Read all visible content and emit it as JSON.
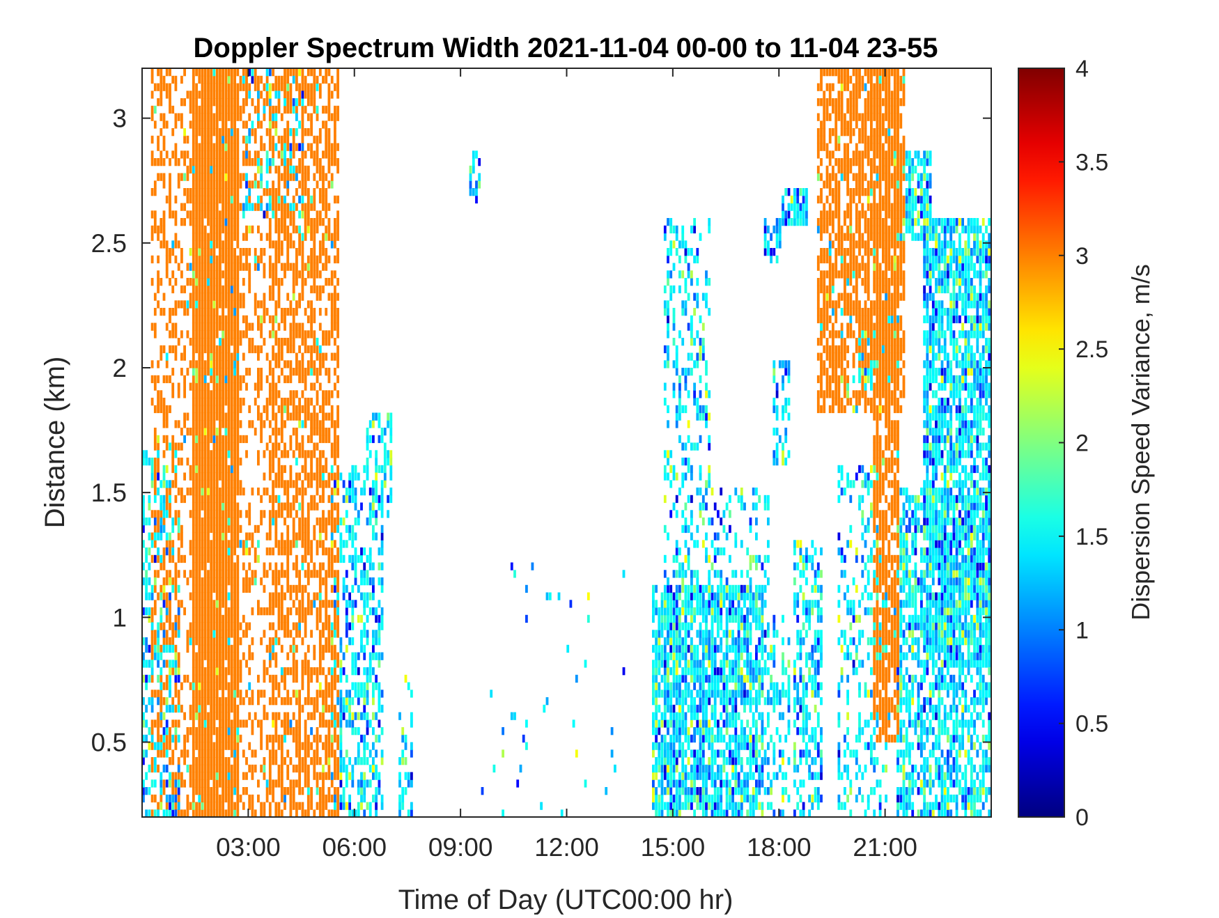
{
  "chart_data": {
    "type": "heatmap",
    "title": "Doppler Spectrum Width 2021-11-04 00-00 to 11-04 23-55",
    "xlabel": "Time of Day (UTC00:00 hr)",
    "ylabel": "Distance (km)",
    "colorbar_label": "Dispersion Speed Variance, m/s",
    "colormap": "jet",
    "colormap_stops": [
      "#00008f",
      "#0000ff",
      "#00ffff",
      "#ffff00",
      "#ff0000",
      "#800000"
    ],
    "background_color": "#ffffff",
    "xlim": [
      0,
      24
    ],
    "ylim": [
      0.2,
      3.2
    ],
    "clim": [
      0,
      4
    ],
    "x_ticks": [
      3,
      6,
      9,
      12,
      15,
      18,
      21
    ],
    "x_tick_labels": [
      "03:00",
      "06:00",
      "09:00",
      "12:00",
      "15:00",
      "18:00",
      "21:00"
    ],
    "y_ticks": [
      0.5,
      1,
      1.5,
      2,
      2.5,
      3
    ],
    "y_tick_labels": [
      "0.5",
      "1",
      "1.5",
      "2",
      "2.5",
      "3"
    ],
    "colorbar_ticks": [
      0,
      0.5,
      1,
      1.5,
      2,
      2.5,
      3,
      3.5,
      4
    ],
    "colorbar_tick_labels": [
      "0",
      "0.5",
      "1",
      "1.5",
      "2",
      "2.5",
      "3",
      "3.5",
      "4"
    ],
    "regions": [
      {
        "x": [
          1.4,
          2.7
        ],
        "y": [
          0.2,
          3.2
        ],
        "value": 3.0,
        "density": 0.93
      },
      {
        "x": [
          0.2,
          3.5
        ],
        "y": [
          0.2,
          3.2
        ],
        "value": 3.0,
        "density": 0.35
      },
      {
        "x": [
          3.5,
          5.5
        ],
        "y": [
          0.2,
          3.2
        ],
        "value": 3.0,
        "density": 0.58
      },
      {
        "x": [
          0.0,
          1.0
        ],
        "y": [
          0.2,
          1.7
        ],
        "value": 1.4,
        "density": 0.45
      },
      {
        "x": [
          2.8,
          4.5
        ],
        "y": [
          2.6,
          3.2
        ],
        "value": 1.3,
        "density": 0.35
      },
      {
        "x": [
          5.3,
          6.8
        ],
        "y": [
          0.2,
          1.6
        ],
        "value": 1.3,
        "density": 0.45
      },
      {
        "x": [
          6.3,
          7.0
        ],
        "y": [
          1.4,
          1.8
        ],
        "value": 1.4,
        "density": 0.4
      },
      {
        "x": [
          7.2,
          7.6
        ],
        "y": [
          0.2,
          0.8
        ],
        "value": 1.4,
        "density": 0.35
      },
      {
        "x": [
          9.2,
          9.5
        ],
        "y": [
          2.65,
          2.85
        ],
        "value": 1.5,
        "density": 0.6
      },
      {
        "x": [
          14.4,
          17.5
        ],
        "y": [
          0.2,
          1.1
        ],
        "value": 1.4,
        "density": 0.78
      },
      {
        "x": [
          14.7,
          16.0
        ],
        "y": [
          1.0,
          2.6
        ],
        "value": 1.4,
        "density": 0.32
      },
      {
        "x": [
          16.0,
          17.7
        ],
        "y": [
          1.0,
          1.5
        ],
        "value": 1.4,
        "density": 0.3
      },
      {
        "x": [
          17.5,
          18.3
        ],
        "y": [
          0.2,
          1.0
        ],
        "value": 1.3,
        "density": 0.35
      },
      {
        "x": [
          17.5,
          18.0
        ],
        "y": [
          2.4,
          2.6
        ],
        "value": 1.5,
        "density": 0.55
      },
      {
        "x": [
          18.0,
          18.8
        ],
        "y": [
          2.55,
          2.72
        ],
        "value": 1.5,
        "density": 0.75
      },
      {
        "x": [
          17.8,
          18.3
        ],
        "y": [
          1.6,
          2.0
        ],
        "value": 1.3,
        "density": 0.4
      },
      {
        "x": [
          18.4,
          19.2
        ],
        "y": [
          0.2,
          1.3
        ],
        "value": 1.3,
        "density": 0.45
      },
      {
        "x": [
          19.0,
          21.5
        ],
        "y": [
          1.8,
          3.2
        ],
        "value": 3.0,
        "density": 0.68
      },
      {
        "x": [
          20.6,
          21.4
        ],
        "y": [
          0.5,
          3.2
        ],
        "value": 3.0,
        "density": 0.72
      },
      {
        "x": [
          19.6,
          21.0
        ],
        "y": [
          0.2,
          1.6
        ],
        "value": 1.3,
        "density": 0.3
      },
      {
        "x": [
          20.2,
          21.0
        ],
        "y": [
          1.9,
          2.2
        ],
        "value": 1.5,
        "density": 0.75
      },
      {
        "x": [
          21.3,
          22.3
        ],
        "y": [
          2.5,
          2.85
        ],
        "value": 1.5,
        "density": 0.72
      },
      {
        "x": [
          22.0,
          24.0
        ],
        "y": [
          0.8,
          2.6
        ],
        "value": 1.5,
        "density": 0.78
      },
      {
        "x": [
          21.3,
          24.0
        ],
        "y": [
          0.2,
          1.5
        ],
        "value": 1.3,
        "density": 0.6
      },
      {
        "x": [
          9.5,
          13.8
        ],
        "y": [
          0.2,
          1.2
        ],
        "value": 1.5,
        "density": 0.02
      }
    ]
  }
}
